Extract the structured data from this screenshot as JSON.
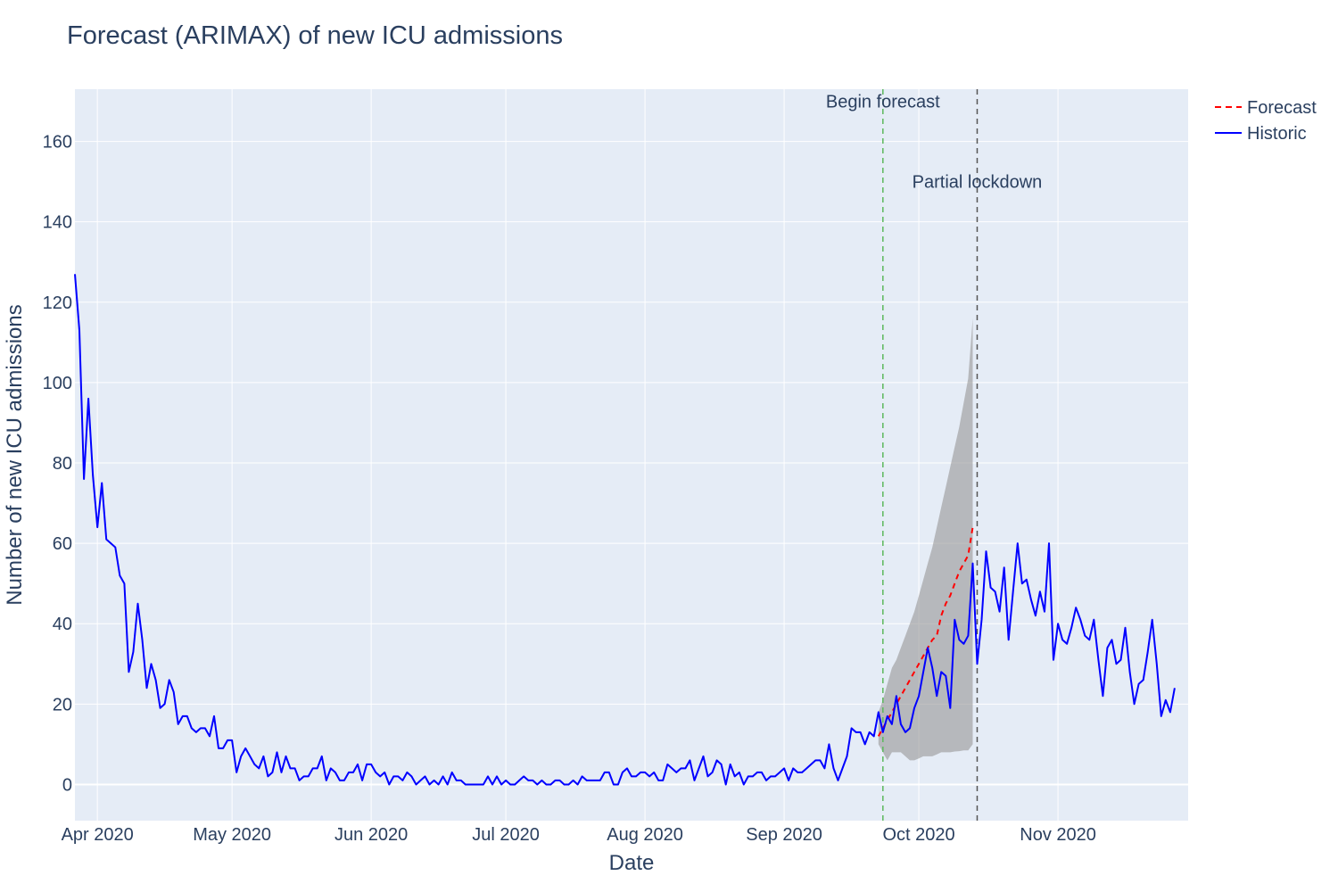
{
  "chart_data": {
    "type": "line",
    "title": "Forecast (ARIMAX) of new ICU admissions",
    "xlabel": "Date",
    "ylabel": "Number of new ICU admissions",
    "x_range": [
      "2020-03-27",
      "2020-11-30"
    ],
    "ylim": [
      -9,
      173
    ],
    "x_ticks": [
      {
        "date": "2020-04-01",
        "label": "Apr 2020"
      },
      {
        "date": "2020-05-01",
        "label": "May 2020"
      },
      {
        "date": "2020-06-01",
        "label": "Jun 2020"
      },
      {
        "date": "2020-07-01",
        "label": "Jul 2020"
      },
      {
        "date": "2020-08-01",
        "label": "Aug 2020"
      },
      {
        "date": "2020-09-01",
        "label": "Sep 2020"
      },
      {
        "date": "2020-10-01",
        "label": "Oct 2020"
      },
      {
        "date": "2020-11-01",
        "label": "Nov 2020"
      }
    ],
    "y_ticks": [
      0,
      20,
      40,
      60,
      80,
      100,
      120,
      140,
      160
    ],
    "grid": true,
    "legend": {
      "placement": "top-right"
    },
    "series": [
      {
        "name": "Historic",
        "color": "#0000ff",
        "style": "solid",
        "start": "2020-03-27",
        "values": [
          127,
          113,
          76,
          96,
          77,
          64,
          75,
          61,
          60,
          59,
          52,
          50,
          28,
          33,
          45,
          36,
          24,
          30,
          26,
          19,
          20,
          26,
          23,
          15,
          17,
          17,
          14,
          13,
          14,
          14,
          12,
          17,
          9,
          9,
          11,
          11,
          3,
          7,
          9,
          7,
          5,
          4,
          7,
          2,
          3,
          8,
          3,
          7,
          4,
          4,
          1,
          2,
          2,
          4,
          4,
          7,
          1,
          4,
          3,
          1,
          1,
          3,
          3,
          5,
          1,
          5,
          5,
          3,
          2,
          3,
          0,
          2,
          2,
          1,
          3,
          2,
          0,
          1,
          2,
          0,
          1,
          0,
          2,
          0,
          3,
          1,
          1,
          0,
          0,
          0,
          0,
          0,
          2,
          0,
          2,
          0,
          1,
          0,
          0,
          1,
          2,
          1,
          1,
          0,
          1,
          0,
          0,
          1,
          1,
          0,
          0,
          1,
          0,
          2,
          1,
          1,
          1,
          1,
          3,
          3,
          0,
          0,
          3,
          4,
          2,
          2,
          3,
          3,
          2,
          3,
          1,
          1,
          5,
          4,
          3,
          4,
          4,
          6,
          1,
          4,
          7,
          2,
          3,
          6,
          5,
          0,
          5,
          2,
          3,
          0,
          2,
          2,
          3,
          3,
          1,
          2,
          2,
          3,
          4,
          1,
          4,
          3,
          3,
          4,
          5,
          6,
          6,
          4,
          10,
          4,
          1,
          4,
          7,
          14,
          13,
          13,
          10,
          13,
          12,
          18,
          13,
          17,
          15,
          22,
          15,
          13,
          14,
          19,
          22,
          28,
          34,
          29,
          22,
          28,
          27,
          19,
          41,
          36,
          35,
          37,
          55,
          30,
          41,
          58,
          49,
          48,
          43,
          54,
          36,
          48,
          60,
          50,
          51,
          46,
          42,
          48,
          43,
          60,
          31,
          40,
          36,
          35,
          39,
          44,
          41,
          37,
          36,
          41,
          31,
          22,
          34,
          36,
          30,
          31,
          39,
          28,
          20,
          25,
          26,
          33,
          41,
          30,
          17,
          21,
          18,
          24
        ]
      },
      {
        "name": "Forecast",
        "color": "#ff0000",
        "style": "dash",
        "start": "2020-09-22",
        "values": [
          12,
          14,
          16,
          18,
          20,
          22,
          24,
          26,
          28,
          30,
          32,
          34,
          36,
          37,
          42,
          45,
          47,
          50,
          53,
          55,
          57,
          64
        ],
        "lower": [
          10,
          8,
          6,
          8,
          8,
          8,
          7,
          6,
          6,
          6.5,
          7,
          7,
          7,
          7.5,
          8,
          8,
          8,
          8.2,
          8.3,
          8.5,
          8.5,
          10
        ],
        "upper": [
          18,
          21,
          25,
          29,
          31,
          34,
          37,
          40,
          43,
          47,
          51,
          55,
          59,
          64,
          69,
          74,
          79,
          84,
          89,
          95,
          101,
          116
        ]
      }
    ],
    "annotations": [
      {
        "text": "Begin forecast",
        "date": "2020-09-23",
        "line_color": "#5cb85c",
        "y": 170
      },
      {
        "text": "Partial lockdown",
        "date": "2020-10-14",
        "line_color": "#555555",
        "y": 150
      }
    ]
  }
}
